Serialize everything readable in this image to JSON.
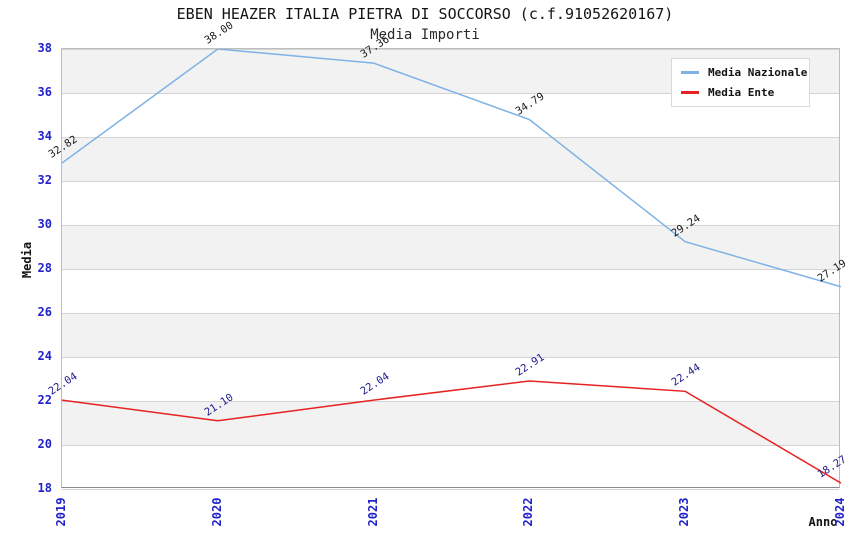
{
  "title": "EBEN HEAZER ITALIA PIETRA DI SOCCORSO (c.f.91052620167)",
  "subtitle": "Media Importi",
  "colors": {
    "tick_label": "#2222cc",
    "grid_line": "#d4d4d4",
    "band_fill": "#f2f2f2",
    "series_nazionale": "#7fb2e5",
    "series_ente": "#e62222",
    "label_nazionale": "#1a1a1a",
    "label_ente": "#1a1a8c"
  },
  "legend": {
    "items": [
      {
        "label": "Media Nazionale",
        "color": "#7fb2e5"
      },
      {
        "label": "Media Ente",
        "color": "#e62222"
      }
    ]
  },
  "chart_data": {
    "type": "line",
    "title": "EBEN HEAZER ITALIA PIETRA DI SOCCORSO (c.f.91052620167)",
    "subtitle": "Media Importi",
    "xlabel": "Anno",
    "ylabel": "Media",
    "x": [
      2019,
      2020,
      2021,
      2022,
      2023,
      2024
    ],
    "x_tick_labels": [
      "2019",
      "2020",
      "2021",
      "2022",
      "2023",
      "2024"
    ],
    "yticks": [
      18,
      20,
      22,
      24,
      26,
      28,
      30,
      32,
      34,
      36,
      38
    ],
    "ylim": [
      18,
      38
    ],
    "grid": "horizontal",
    "banded_background": true,
    "legend_position": "top-right",
    "series": [
      {
        "name": "Media Nazionale",
        "color": "#7fb2e5",
        "label_color": "#1a1a1a",
        "values": [
          32.82,
          38.0,
          37.36,
          34.79,
          29.24,
          27.19
        ],
        "labels": [
          "32.82",
          "38.00",
          "37.36",
          "34.79",
          "29.24",
          "27.19"
        ]
      },
      {
        "name": "Media Ente",
        "color": "#e62222",
        "label_color": "#1a1a8c",
        "values": [
          22.04,
          21.1,
          22.04,
          22.91,
          22.44,
          18.27
        ],
        "labels": [
          "22.04",
          "21.10",
          "22.04",
          "22.91",
          "22.44",
          "18.27"
        ]
      }
    ]
  }
}
